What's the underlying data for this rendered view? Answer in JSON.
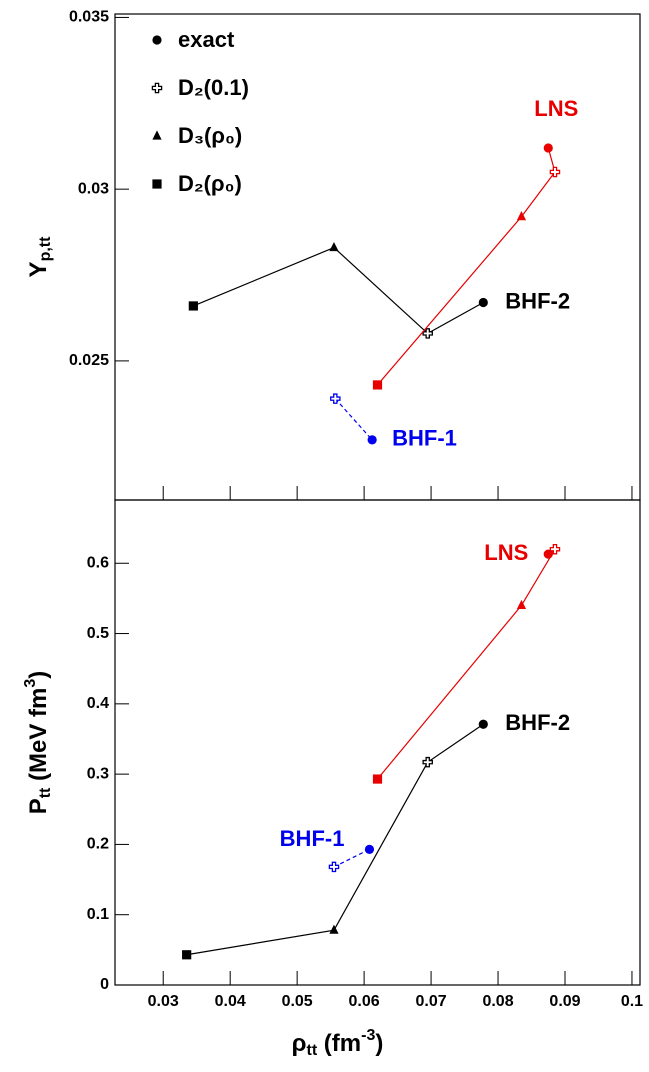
{
  "chart_data": [
    {
      "type": "line",
      "y_label": [
        "Y",
        "p,tt"
      ],
      "xlim": [
        0.0228,
        0.1012
      ],
      "xticks": [
        0.03,
        0.04,
        0.05,
        0.06,
        0.07,
        0.08,
        0.09,
        0.1
      ],
      "xtick_labels": false,
      "ylim": [
        0.02095,
        0.0351
      ],
      "yticks": [
        0.025,
        0.03,
        0.035
      ],
      "legend": [
        {
          "label": "exact",
          "marker": "circle"
        },
        {
          "label": "D₂(0.1)",
          "marker": "cross"
        },
        {
          "label": "D₃(ρ₀)",
          "marker": "triangle"
        },
        {
          "label": "D₂(ρ₀)",
          "marker": "square"
        }
      ],
      "series": [
        {
          "name": "BHF-2",
          "color": "#000000",
          "style": "solid",
          "markers": [
            "square",
            "triangle",
            "cross",
            "circle"
          ],
          "x": [
            0.0345,
            0.0555,
            0.0695,
            0.0778
          ],
          "y": [
            0.0266,
            0.0283,
            0.0258,
            0.0267
          ]
        },
        {
          "name": "LNS",
          "color": "#e80000",
          "style": "solid",
          "markers": [
            "square",
            "triangle",
            "cross",
            "circle"
          ],
          "x": [
            0.062,
            0.0835,
            0.0885,
            0.0875
          ],
          "y": [
            0.0243,
            0.0292,
            0.0305,
            0.0312
          ]
        },
        {
          "name": "BHF-1",
          "color": "#0000ee",
          "style": "dashed",
          "markers": [
            "cross",
            "circle"
          ],
          "x": [
            0.0557,
            0.0612
          ],
          "y": [
            0.0239,
            0.0227
          ]
        }
      ]
    },
    {
      "type": "line",
      "y_label": [
        "P",
        "tt",
        " (MeV fm",
        "3",
        ")"
      ],
      "x_label": [
        "ρ",
        "tt",
        " (fm",
        "-3",
        ")"
      ],
      "xlim": [
        0.0228,
        0.1012
      ],
      "xticks": [
        0.03,
        0.04,
        0.05,
        0.06,
        0.07,
        0.08,
        0.09,
        0.1
      ],
      "xtick_labels": true,
      "ylim": [
        0,
        0.69
      ],
      "yticks": [
        0,
        0.1,
        0.2,
        0.3,
        0.4,
        0.5,
        0.6
      ],
      "series": [
        {
          "name": "BHF-2",
          "color": "#000000",
          "style": "solid",
          "markers": [
            "square",
            "triangle",
            "cross",
            "circle"
          ],
          "x": [
            0.0335,
            0.0555,
            0.0695,
            0.0778
          ],
          "y": [
            0.043,
            0.078,
            0.317,
            0.371
          ]
        },
        {
          "name": "LNS",
          "color": "#e80000",
          "style": "solid",
          "markers": [
            "square",
            "triangle",
            "cross",
            "circle"
          ],
          "x": [
            0.062,
            0.0835,
            0.0885,
            0.0875
          ],
          "y": [
            0.293,
            0.54,
            0.62,
            0.613
          ]
        },
        {
          "name": "BHF-1",
          "color": "#0000ee",
          "style": "dashed",
          "markers": [
            "cross",
            "circle"
          ],
          "x": [
            0.0555,
            0.0608
          ],
          "y": [
            0.168,
            0.193
          ]
        }
      ]
    }
  ]
}
